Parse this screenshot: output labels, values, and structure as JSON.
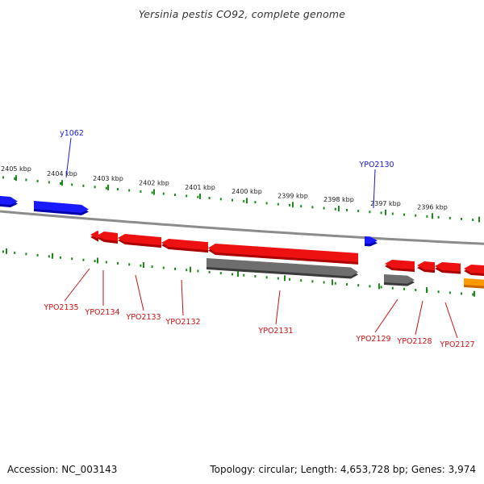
{
  "title": "Yersinia pestis CO92, complete genome",
  "footer": {
    "accession": "Accession: NC_003143",
    "summary": "Topology: circular; Length: 4,653,728 bp; Genes: 3,974"
  },
  "colors": {
    "forward_gene": "#1a1aff",
    "reverse_gene": "#ee1111",
    "pseudo_gene": "#6e6e6e",
    "other_gene": "#ff9900",
    "ticks": "#1a8a1a",
    "label_forward": "#1a1acc",
    "label_reverse": "#cc1111",
    "backbone": "#8c8c8c"
  },
  "ruler_labels": [
    "2405 kbp",
    "2404 kbp",
    "2403 kbp",
    "2402 kbp",
    "2401 kbp",
    "2400 kbp",
    "2399 kbp",
    "2398 kbp",
    "2397 kbp",
    "2396 kbp"
  ],
  "forward_genes": [
    {
      "label": "y1062"
    },
    {
      "label": "YPO2130"
    }
  ],
  "reverse_genes": [
    {
      "label": "YPO2135"
    },
    {
      "label": "YPO2134"
    },
    {
      "label": "YPO2133"
    },
    {
      "label": "YPO2132"
    },
    {
      "label": "YPO2131"
    },
    {
      "label": "YPO2129"
    },
    {
      "label": "YPO2128"
    },
    {
      "label": "YPO2127"
    }
  ]
}
